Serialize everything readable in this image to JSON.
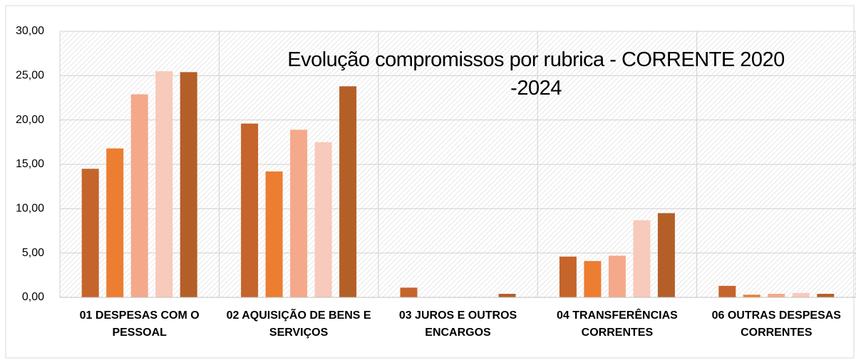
{
  "chart_data": {
    "type": "bar",
    "title": "Evolução compromissos por rubrica - CORRENTE 2020 -2024",
    "categories": [
      "01 DESPESAS COM O PESSOAL",
      "02 AQUISIÇÃO DE BENS E SERVIÇOS",
      "03 JUROS E OUTROS ENCARGOS",
      "04 TRANSFERÊNCIAS CORRENTES",
      "06 OUTRAS DESPESAS CORRENTES"
    ],
    "series": [
      {
        "color": "#c5642b",
        "values": [
          14.5,
          19.6,
          1.1,
          4.6,
          1.3
        ]
      },
      {
        "color": "#ed7d31",
        "values": [
          16.8,
          14.2,
          0,
          4.1,
          0.3
        ]
      },
      {
        "color": "#f4a98a",
        "values": [
          22.9,
          18.9,
          0,
          4.7,
          0.4
        ]
      },
      {
        "color": "#f7cabb",
        "values": [
          25.5,
          17.5,
          0,
          8.7,
          0.5
        ]
      },
      {
        "color": "#b45f27",
        "values": [
          25.4,
          23.8,
          0.4,
          9.5,
          0.4
        ]
      }
    ],
    "ylim": [
      0,
      30
    ],
    "yticks": [
      {
        "value": 0,
        "label": "0,00"
      },
      {
        "value": 5,
        "label": "5,00"
      },
      {
        "value": 10,
        "label": "10,00"
      },
      {
        "value": 15,
        "label": "15,00"
      },
      {
        "value": 20,
        "label": "20,00"
      },
      {
        "value": 25,
        "label": "25,00"
      },
      {
        "value": 30,
        "label": "30,00"
      }
    ],
    "grid": true
  }
}
